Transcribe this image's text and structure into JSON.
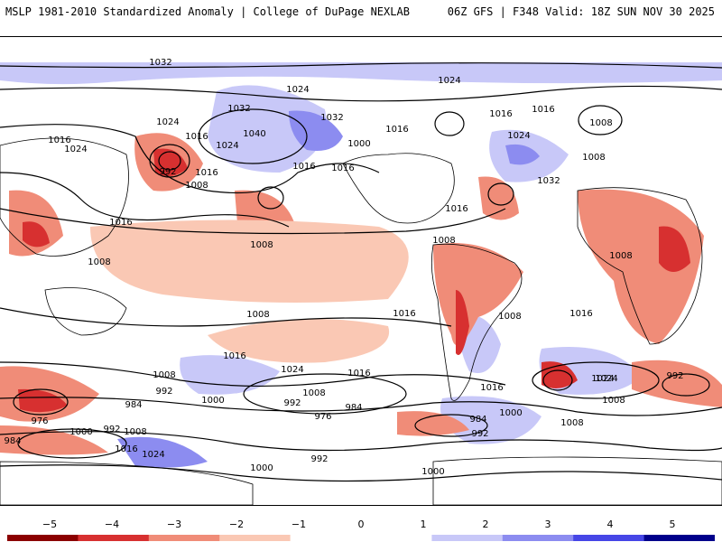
{
  "header": {
    "product_title": "MSLP 1981-2010 Standardized Anomaly | College of DuPage NEXLAB",
    "run_info": "06Z GFS | F348 Valid: 18Z SUN NOV 30 2025"
  },
  "colorbar": {
    "ticks": [
      {
        "id": "m5",
        "label": "−5",
        "value": -5
      },
      {
        "id": "m4",
        "label": "−4",
        "value": -4
      },
      {
        "id": "m3",
        "label": "−3",
        "value": -3
      },
      {
        "id": "m2",
        "label": "−2",
        "value": -2
      },
      {
        "id": "m1",
        "label": "−1",
        "value": -1
      },
      {
        "id": "z0",
        "label": "0",
        "value": 0
      },
      {
        "id": "p1",
        "label": "1",
        "value": 1
      },
      {
        "id": "p2",
        "label": "2",
        "value": 2
      },
      {
        "id": "p3",
        "label": "3",
        "value": 3
      },
      {
        "id": "p4",
        "label": "4",
        "value": 4
      },
      {
        "id": "p5",
        "label": "5",
        "value": 5
      }
    ],
    "colors": {
      "neg_strong": "#8b0000",
      "neg_med": "#d73030",
      "neg_light": "#f08c78",
      "neg_faint": "#fac8b4",
      "neutral": "#ffffff",
      "pos_faint": "#c8c8f8",
      "pos_light": "#8c8cf0",
      "pos_med": "#4646e6",
      "pos_strong": "#00008b"
    }
  },
  "isobars": {
    "labels": [
      "1032",
      "1024",
      "1024",
      "1040",
      "1032",
      "1032",
      "1016",
      "1024",
      "1016",
      "1024",
      "1016",
      "1016",
      "1000",
      "1016",
      "1016",
      "1032",
      "1024",
      "1016",
      "1024",
      "992",
      "1008",
      "1016",
      "1008",
      "1016",
      "1016",
      "1008",
      "1008",
      "1008",
      "1008",
      "1008",
      "1016",
      "1016",
      "1008",
      "1016",
      "1008",
      "1008",
      "1024",
      "1016",
      "1024",
      "1008",
      "1016",
      "1000",
      "992",
      "984",
      "976",
      "984",
      "1000",
      "992",
      "1008",
      "1016",
      "1024",
      "992",
      "1008",
      "1000",
      "1008",
      "976",
      "984",
      "992",
      "984",
      "992",
      "1000",
      "1000",
      "1024",
      "992"
    ]
  }
}
